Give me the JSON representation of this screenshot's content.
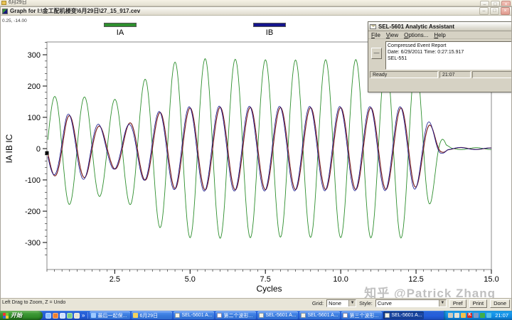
{
  "background_window": {
    "title": "6月29日"
  },
  "graph_window": {
    "title": "Graph for I:\\金工配机楼变\\6月29日\\27_15_917.cev",
    "coord_readout": "0.25, -14.00",
    "status_hint": "Left Drag to Zoom, Z = Undo",
    "grid_label": "Grid:",
    "grid_value": "None",
    "style_label": "Style:",
    "style_value": "Curve",
    "pref_label": "Pref",
    "print_label": "Print",
    "done_label": "Done"
  },
  "dialog": {
    "title": "SEL-5601 Analytic Assistant",
    "menu": [
      "File",
      "View",
      "Options...",
      "Help"
    ],
    "report_lines": [
      "Compressed Event Report",
      "Date: 6/29/2011  Time: 0:27:15.917",
      "SEL-551"
    ],
    "status_ready": "Ready",
    "status_time": "21:07"
  },
  "watermark": "知乎 @Patrick Zhang",
  "taskbar": {
    "start_label": "开始",
    "quick_launch": [
      {
        "name": "ie-icon",
        "color": "#8fc2ff"
      },
      {
        "name": "media-player-icon",
        "color": "#f08030"
      },
      {
        "name": "outlook-icon",
        "color": "#cfe2ff"
      },
      {
        "name": "messenger-icon",
        "color": "#7fd07f"
      },
      {
        "name": "show-desktop-icon",
        "color": "#e8e4d0"
      }
    ],
    "quick_launch_more": "»",
    "tasks": [
      {
        "label": "最后一起保...",
        "icon": "ie-icon",
        "active": false
      },
      {
        "label": "6月29日",
        "icon": "folder-icon",
        "active": false
      },
      {
        "label": "SEL-5601 A...",
        "icon": "mail-icon",
        "active": false
      },
      {
        "label": "第二个波形...",
        "icon": "doc-icon",
        "active": false
      },
      {
        "label": "SEL-5601 A...",
        "icon": "mail-icon",
        "active": false
      },
      {
        "label": "SEL-5601 A...",
        "icon": "mail-icon",
        "active": false
      },
      {
        "label": "第三个波形...",
        "icon": "doc-icon",
        "active": false
      },
      {
        "label": "SEL-5601 A...",
        "icon": "mail-icon",
        "active": true
      }
    ],
    "tray_icons": [
      {
        "name": "printer-icon",
        "glyph": "",
        "color": "#cfcabb"
      },
      {
        "name": "volume-icon",
        "glyph": "",
        "color": "#e6e2d2"
      },
      {
        "name": "update-icon",
        "glyph": "",
        "color": "#f2c14e"
      },
      {
        "name": "kingsoft-icon",
        "glyph": "K",
        "color": "#d42a2a"
      },
      {
        "name": "network-icon",
        "glyph": "",
        "color": "#7f9ac4"
      },
      {
        "name": "antivirus-icon",
        "glyph": "",
        "color": "#3fae4a"
      },
      {
        "name": "msn-icon",
        "glyph": "",
        "color": "#58c0e8"
      }
    ],
    "tray_time": "21:07"
  },
  "chart_data": {
    "type": "line",
    "title": "",
    "xlabel": "Cycles",
    "ylabel": "IA IB IC",
    "xlim": [
      0.25,
      15.0
    ],
    "ylim": [
      -350,
      350
    ],
    "x_ticks_major": [
      2.5,
      5.0,
      7.5,
      10.0,
      12.5,
      15.0
    ],
    "x_tick_minor_step": 0.25,
    "y_ticks_major": [
      -300,
      -200,
      -100,
      0,
      100,
      200,
      300
    ],
    "y_tick_minor_step": 20,
    "grid": "none",
    "legend_position": "top",
    "legend_visible": [
      "IA",
      "IB"
    ],
    "cursor": {
      "x": 0.25,
      "y": -14.0
    },
    "fault_clear_cycle": 13.5,
    "series": [
      {
        "name": "IA",
        "color": "#2e8f2e",
        "cycles_per_unit": 1,
        "phase": 0.25,
        "amplitude_envelope": [
          [
            0.28,
            150
          ],
          [
            0.75,
            185
          ],
          [
            1.5,
            165
          ],
          [
            2.2,
            148
          ],
          [
            2.9,
            170
          ],
          [
            3.6,
            230
          ],
          [
            4.4,
            275
          ],
          [
            5.2,
            288
          ],
          [
            8.0,
            283
          ],
          [
            12.4,
            286
          ],
          [
            12.8,
            240
          ],
          [
            13.05,
            150
          ],
          [
            13.3,
            60
          ],
          [
            13.5,
            12
          ],
          [
            13.7,
            3
          ],
          [
            15.0,
            3
          ]
        ]
      },
      {
        "name": "IB",
        "color": "#14148c",
        "cycles_per_unit": 1,
        "phase": 0.72,
        "amplitude_envelope": [
          [
            0.28,
            70
          ],
          [
            0.9,
            112
          ],
          [
            1.6,
            95
          ],
          [
            2.3,
            62
          ],
          [
            3.0,
            78
          ],
          [
            3.7,
            112
          ],
          [
            4.5,
            132
          ],
          [
            5.5,
            136
          ],
          [
            12.4,
            134
          ],
          [
            12.8,
            108
          ],
          [
            13.1,
            62
          ],
          [
            13.35,
            20
          ],
          [
            13.55,
            4
          ],
          [
            15.0,
            2
          ]
        ]
      },
      {
        "name": "IC",
        "color": "#7a2020",
        "cycles_per_unit": 1,
        "phase": 0.75,
        "amplitude_envelope": [
          [
            0.28,
            75
          ],
          [
            0.9,
            108
          ],
          [
            1.6,
            90
          ],
          [
            2.3,
            58
          ],
          [
            3.0,
            82
          ],
          [
            3.7,
            108
          ],
          [
            4.5,
            128
          ],
          [
            5.5,
            132
          ],
          [
            12.4,
            130
          ],
          [
            12.8,
            100
          ],
          [
            13.1,
            58
          ],
          [
            13.35,
            18
          ],
          [
            13.55,
            4
          ],
          [
            15.0,
            2
          ]
        ]
      }
    ]
  }
}
